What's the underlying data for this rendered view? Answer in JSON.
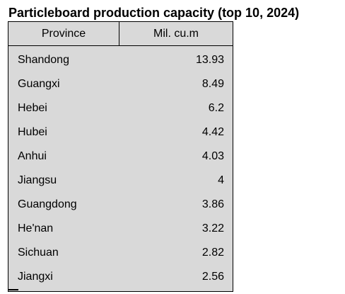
{
  "chart_data": {
    "type": "table",
    "title": "Particleboard production capacity (top 10, 2024)",
    "columns": [
      "Province",
      "Mil. cu.m"
    ],
    "rows": [
      {
        "province": "Shandong",
        "value": "13.93"
      },
      {
        "province": "Guangxi",
        "value": "8.49"
      },
      {
        "province": "Hebei",
        "value": "6.2"
      },
      {
        "province": "Hubei",
        "value": "4.42"
      },
      {
        "province": "Anhui",
        "value": "4.03"
      },
      {
        "province": "Jiangsu",
        "value": "4"
      },
      {
        "province": "Guangdong",
        "value": "3.86"
      },
      {
        "province": "He'nan",
        "value": "3.22"
      },
      {
        "province": "Sichuan",
        "value": "2.82"
      },
      {
        "province": "Jiangxi",
        "value": "2.56"
      }
    ],
    "colors": {
      "cell_background": "#d9d9d9",
      "border": "#000000"
    }
  }
}
